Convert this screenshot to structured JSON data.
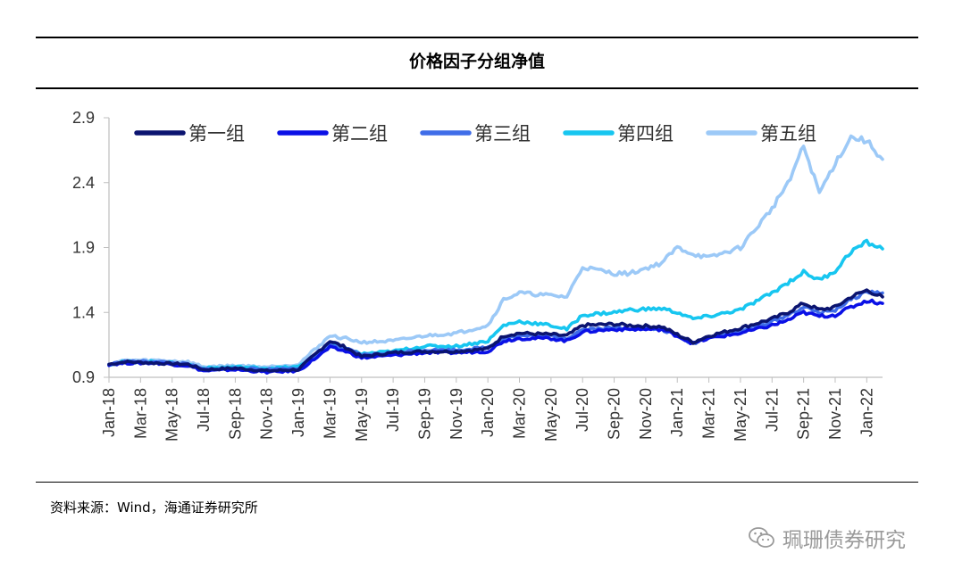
{
  "header": {
    "title": "价格因子分组净值"
  },
  "footer": {
    "source": "资料来源：Wind，海通证券研究所"
  },
  "watermark": {
    "icon": "wechat-icon",
    "text": "珮珊债券研究"
  },
  "colors": {
    "series": [
      "#0b1470",
      "#0a10e6",
      "#3f6de8",
      "#17c6f0",
      "#9cc9f7"
    ],
    "axis": "#bfbfbf"
  },
  "chart_data": {
    "type": "line",
    "title": "价格因子分组净值",
    "xlabel": "",
    "ylabel": "",
    "ylim": [
      0.9,
      2.9
    ],
    "yticks": [
      "0.9",
      "1.4",
      "1.9",
      "2.4",
      "2.9"
    ],
    "xlim": [
      "2018-01",
      "2022-02"
    ],
    "x_tick_labels": [
      "Jan-18",
      "Mar-18",
      "May-18",
      "Jul-18",
      "Sep-18",
      "Nov-18",
      "Jan-19",
      "Mar-19",
      "May-19",
      "Jul-19",
      "Sep-19",
      "Nov-19",
      "Jan-20",
      "Mar-20",
      "May-20",
      "Jul-20",
      "Sep-20",
      "Nov-20",
      "Jan-21",
      "Mar-21",
      "May-21",
      "Jul-21",
      "Sep-21",
      "Nov-21",
      "Jan-22"
    ],
    "grid": false,
    "legend": "top",
    "series": [
      {
        "name": "第一组",
        "x": [
          "2018-01",
          "2018-02",
          "2018-04",
          "2018-06",
          "2018-07",
          "2018-09",
          "2018-11",
          "2019-01",
          "2019-03",
          "2019-04",
          "2019-05",
          "2019-07",
          "2019-09",
          "2019-11",
          "2020-01",
          "2020-02",
          "2020-03",
          "2020-05",
          "2020-06",
          "2020-07",
          "2020-09",
          "2020-10",
          "2020-12",
          "2021-01",
          "2021-02",
          "2021-03",
          "2021-05",
          "2021-07",
          "2021-08",
          "2021-09",
          "2021-10",
          "2021-11",
          "2021-12",
          "2022-01",
          "2022-02"
        ],
        "y": [
          1.0,
          1.02,
          1.01,
          1.0,
          0.96,
          0.97,
          0.95,
          0.96,
          1.18,
          1.13,
          1.06,
          1.09,
          1.1,
          1.1,
          1.12,
          1.22,
          1.24,
          1.23,
          1.22,
          1.3,
          1.31,
          1.3,
          1.29,
          1.23,
          1.17,
          1.22,
          1.28,
          1.35,
          1.4,
          1.47,
          1.42,
          1.44,
          1.52,
          1.57,
          1.52
        ]
      },
      {
        "name": "第二组",
        "x": [
          "2018-01",
          "2018-02",
          "2018-04",
          "2018-06",
          "2018-07",
          "2018-09",
          "2018-11",
          "2019-01",
          "2019-03",
          "2019-04",
          "2019-05",
          "2019-07",
          "2019-09",
          "2019-11",
          "2020-01",
          "2020-02",
          "2020-03",
          "2020-05",
          "2020-06",
          "2020-07",
          "2020-09",
          "2020-10",
          "2020-12",
          "2021-01",
          "2021-02",
          "2021-03",
          "2021-05",
          "2021-07",
          "2021-08",
          "2021-09",
          "2021-10",
          "2021-11",
          "2021-12",
          "2022-01",
          "2022-02"
        ],
        "y": [
          1.0,
          1.01,
          1.01,
          0.99,
          0.95,
          0.96,
          0.94,
          0.95,
          1.13,
          1.1,
          1.05,
          1.07,
          1.09,
          1.09,
          1.1,
          1.18,
          1.2,
          1.2,
          1.18,
          1.25,
          1.27,
          1.27,
          1.27,
          1.22,
          1.16,
          1.2,
          1.24,
          1.3,
          1.34,
          1.4,
          1.37,
          1.38,
          1.44,
          1.49,
          1.47
        ]
      },
      {
        "name": "第三组",
        "x": [
          "2018-01",
          "2018-02",
          "2018-04",
          "2018-06",
          "2018-07",
          "2018-09",
          "2018-11",
          "2019-01",
          "2019-03",
          "2019-04",
          "2019-05",
          "2019-07",
          "2019-09",
          "2019-11",
          "2020-01",
          "2020-02",
          "2020-03",
          "2020-05",
          "2020-06",
          "2020-07",
          "2020-09",
          "2020-10",
          "2020-12",
          "2021-01",
          "2021-02",
          "2021-03",
          "2021-05",
          "2021-07",
          "2021-08",
          "2021-09",
          "2021-10",
          "2021-11",
          "2021-12",
          "2022-01",
          "2022-02"
        ],
        "y": [
          1.0,
          1.02,
          1.02,
          1.0,
          0.96,
          0.97,
          0.96,
          0.97,
          1.15,
          1.12,
          1.07,
          1.09,
          1.11,
          1.11,
          1.13,
          1.2,
          1.22,
          1.22,
          1.2,
          1.27,
          1.28,
          1.28,
          1.27,
          1.22,
          1.16,
          1.21,
          1.26,
          1.33,
          1.38,
          1.44,
          1.4,
          1.42,
          1.5,
          1.56,
          1.55
        ]
      },
      {
        "name": "第四组",
        "x": [
          "2018-01",
          "2018-02",
          "2018-04",
          "2018-06",
          "2018-07",
          "2018-09",
          "2018-11",
          "2019-01",
          "2019-03",
          "2019-04",
          "2019-05",
          "2019-07",
          "2019-09",
          "2019-11",
          "2020-01",
          "2020-02",
          "2020-03",
          "2020-05",
          "2020-06",
          "2020-07",
          "2020-09",
          "2020-10",
          "2020-12",
          "2021-01",
          "2021-02",
          "2021-03",
          "2021-05",
          "2021-07",
          "2021-08",
          "2021-09",
          "2021-10",
          "2021-11",
          "2021-12",
          "2022-01",
          "2022-02"
        ],
        "y": [
          1.0,
          1.02,
          1.02,
          1.0,
          0.97,
          0.98,
          0.97,
          0.98,
          1.15,
          1.12,
          1.08,
          1.1,
          1.14,
          1.14,
          1.18,
          1.3,
          1.33,
          1.3,
          1.27,
          1.38,
          1.4,
          1.42,
          1.43,
          1.4,
          1.35,
          1.37,
          1.42,
          1.55,
          1.63,
          1.71,
          1.65,
          1.72,
          1.87,
          1.94,
          1.89
        ]
      },
      {
        "name": "第五组",
        "x": [
          "2018-01",
          "2018-02",
          "2018-04",
          "2018-06",
          "2018-07",
          "2018-09",
          "2018-11",
          "2019-01",
          "2019-03",
          "2019-04",
          "2019-05",
          "2019-07",
          "2019-09",
          "2019-11",
          "2020-01",
          "2020-02",
          "2020-03",
          "2020-05",
          "2020-06",
          "2020-07",
          "2020-09",
          "2020-10",
          "2020-12",
          "2021-01",
          "2021-02",
          "2021-03",
          "2021-05",
          "2021-07",
          "2021-08",
          "2021-09",
          "2021-10",
          "2021-11",
          "2021-12",
          "2022-01",
          "2022-02"
        ],
        "y": [
          1.0,
          1.03,
          1.03,
          1.02,
          0.98,
          0.99,
          0.98,
          1.0,
          1.22,
          1.2,
          1.17,
          1.18,
          1.22,
          1.24,
          1.3,
          1.5,
          1.55,
          1.53,
          1.52,
          1.75,
          1.7,
          1.7,
          1.78,
          1.9,
          1.85,
          1.82,
          1.9,
          2.2,
          2.4,
          2.68,
          2.32,
          2.55,
          2.75,
          2.72,
          2.58
        ]
      }
    ]
  }
}
